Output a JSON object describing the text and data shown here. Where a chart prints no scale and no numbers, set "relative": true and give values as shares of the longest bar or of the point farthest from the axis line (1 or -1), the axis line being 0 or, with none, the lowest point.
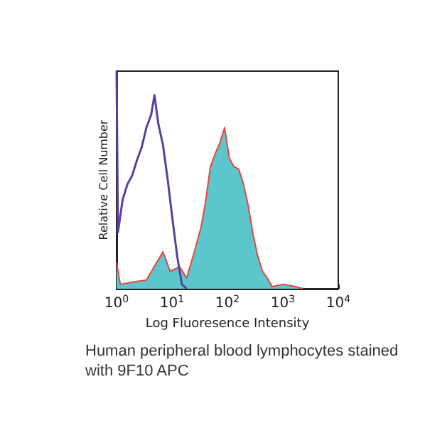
{
  "chart_data": {
    "type": "area",
    "relative": true,
    "xlabel": "Log Fluoresence Intensity",
    "ylabel": "Relative Cell Number",
    "log": "x",
    "xlim": [
      1,
      10000
    ],
    "xticks": [
      {
        "value": 1,
        "label": "10$^{0}$"
      },
      {
        "value": 10,
        "label": "10$^{1}$"
      },
      {
        "value": 100,
        "label": "10$^{2}$"
      },
      {
        "value": 1000,
        "label": "10$^{3}$"
      },
      {
        "value": 10000,
        "label": "10$^{4}$"
      }
    ],
    "grid": false,
    "marker": "none",
    "annotations": [
      "Human peripheral blood lymphocytes stained with 9F10 APC"
    ],
    "series": [
      {
        "color": "#5bc6cc",
        "x": [
          1,
          1.17,
          1.91,
          3.45,
          6.88,
          9.25,
          13.7,
          18.4,
          24.7,
          33.2,
          40.4,
          49.2,
          60,
          73,
          89,
          108,
          132,
          160,
          195,
          238,
          290,
          352,
          429,
          522,
          636,
          1040,
          1700,
          2290
        ],
        "values": [
          0.12,
          0.02,
          0.03,
          0.04,
          0.17,
          0.08,
          0.1,
          0.05,
          0.16,
          0.28,
          0.4,
          0.56,
          0.62,
          0.67,
          0.74,
          0.6,
          0.56,
          0.55,
          0.48,
          0.38,
          0.25,
          0.15,
          0.08,
          0.05,
          0.01,
          0.02,
          0.01,
          0
        ]
      },
      {
        "type": "line",
        "color": "#5b3fa0",
        "x": [
          1,
          1.06,
          1.29,
          1.57,
          1.91,
          2.33,
          2.84,
          3.45,
          4.21,
          4.83,
          5.65,
          6.88,
          8.38,
          10.2,
          12.4,
          15.1,
          18.4
        ],
        "values": [
          1,
          0.26,
          0.41,
          0.48,
          0.52,
          0.59,
          0.65,
          0.74,
          0.8,
          0.89,
          0.76,
          0.66,
          0.5,
          0.32,
          0.15,
          0.02,
          0
        ]
      }
    ]
  }
}
